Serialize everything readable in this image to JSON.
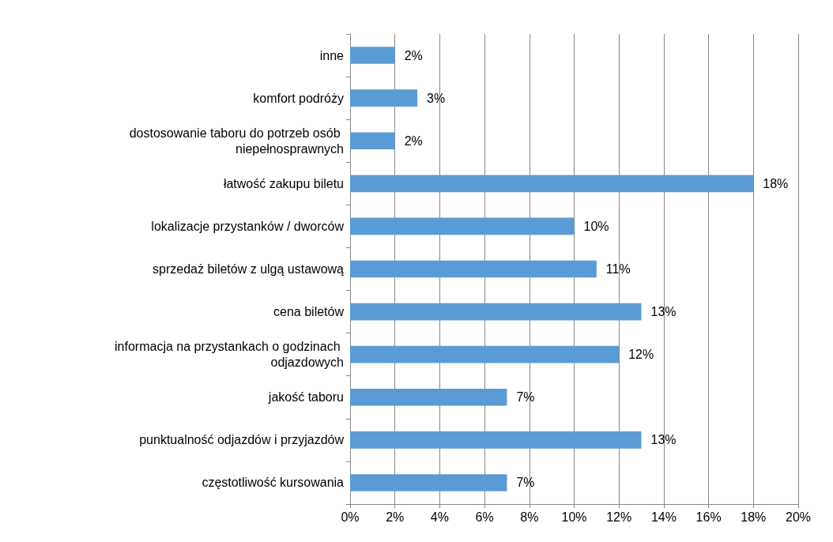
{
  "chart_data": {
    "type": "bar",
    "orientation": "horizontal",
    "categories": [
      "inne",
      "komfort podróży",
      "dostosowanie taboru do potrzeb osób niepełnosprawnych",
      "łatwość zakupu biletu",
      "lokalizacje przystanków / dworców",
      "sprzedaż biletów z ulgą ustawową",
      "cena biletów",
      "informacja na przystankach o godzinach odjazdowych",
      "jakość taboru",
      "punktualność odjazdów i przyjazdów",
      "częstotliwość kursowania"
    ],
    "values": [
      2,
      3,
      2,
      18,
      10,
      11,
      13,
      12,
      7,
      13,
      7
    ],
    "value_labels": [
      "2%",
      "3%",
      "2%",
      "18%",
      "10%",
      "11%",
      "13%",
      "12%",
      "7%",
      "13%",
      "7%"
    ],
    "color": "#5b9bd5",
    "xlim": [
      0,
      20
    ],
    "xticks": [
      {
        "value": 0,
        "label": "0%"
      },
      {
        "value": 2,
        "label": "2%"
      },
      {
        "value": 4,
        "label": "4%"
      },
      {
        "value": 6,
        "label": "6%"
      },
      {
        "value": 8,
        "label": "8%"
      },
      {
        "value": 10,
        "label": "10%"
      },
      {
        "value": 12,
        "label": "12%"
      },
      {
        "value": 14,
        "label": "14%"
      },
      {
        "value": 16,
        "label": "16%"
      },
      {
        "value": 18,
        "label": "18%"
      },
      {
        "value": 20,
        "label": "20%"
      }
    ],
    "grid": "x"
  }
}
